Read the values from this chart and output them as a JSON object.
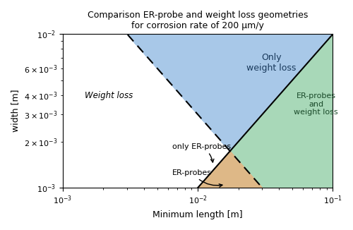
{
  "title": "Comparison ER-probe and weight loss geometries\nfor corrosion rate of 200 μm/y",
  "xlabel": "Minimum length [m]",
  "ylabel": "width [m]",
  "x_min": 0.001,
  "x_max": 0.1,
  "y_min": 0.001,
  "y_max": 0.01,
  "C_er": 0.1,
  "K_wl": 3e-05,
  "region_blue_color": "#a8c8e8",
  "region_green_color": "#a8d8b8",
  "region_tan_color": "#deb887",
  "label_weight_loss": "Weight loss",
  "label_only_er": "only ER-probes",
  "label_er_probes": "ER-probes",
  "label_blue": "Only\nweight loss",
  "label_green": "ER-probes\nand\nweight loss",
  "title_fontsize": 9,
  "axis_fontsize": 9,
  "tick_fontsize": 8
}
